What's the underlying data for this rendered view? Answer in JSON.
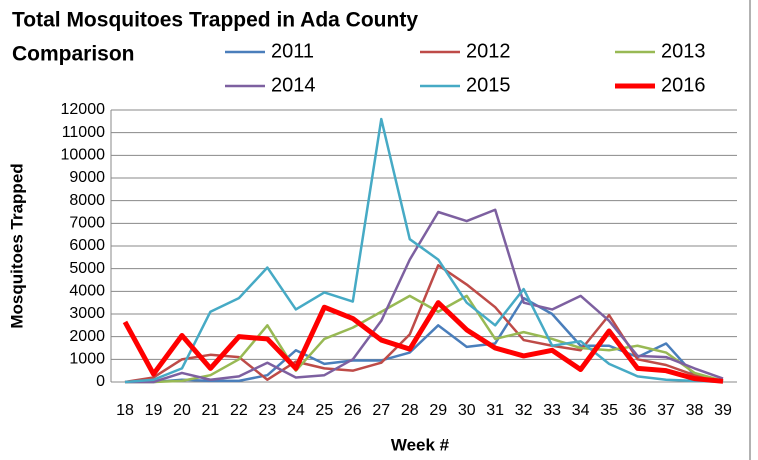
{
  "chart_data": {
    "type": "line",
    "title": [
      "Total Mosquitoes Trapped in Ada County",
      "Comparison"
    ],
    "x_label": "Week #",
    "y_label": "Mosquitoes Trapped",
    "categories": [
      "18",
      "19",
      "20",
      "21",
      "22",
      "23",
      "24",
      "25",
      "26",
      "27",
      "28",
      "29",
      "30",
      "31",
      "32",
      "33",
      "34",
      "35",
      "36",
      "37",
      "38",
      "39"
    ],
    "ylim": [
      0,
      12000
    ],
    "yticks": [
      0,
      1000,
      2000,
      3000,
      4000,
      5000,
      6000,
      7000,
      8000,
      9000,
      10000,
      11000,
      12000
    ],
    "grid": true,
    "series": [
      {
        "name": "2011",
        "color": "#4a7ebb",
        "line_width": 2.5,
        "values": [
          0,
          0,
          100,
          50,
          50,
          300,
          1400,
          800,
          950,
          950,
          1300,
          2500,
          1550,
          1700,
          3700,
          3000,
          1600,
          1600,
          1100,
          1700,
          300,
          50
        ]
      },
      {
        "name": "2012",
        "color": "#be4b48",
        "line_width": 2.5,
        "values": [
          0,
          200,
          1000,
          1200,
          1100,
          100,
          900,
          600,
          500,
          850,
          2100,
          5150,
          4300,
          3300,
          1850,
          1600,
          1400,
          2950,
          1000,
          750,
          300,
          0
        ]
      },
      {
        "name": "2013",
        "color": "#98b954",
        "line_width": 2.5,
        "values": [
          0,
          0,
          50,
          300,
          1000,
          2500,
          500,
          1900,
          2400,
          3100,
          3800,
          3100,
          3800,
          1900,
          2200,
          1900,
          1500,
          1400,
          1600,
          1300,
          400,
          50
        ]
      },
      {
        "name": "2014",
        "color": "#7d60a0",
        "line_width": 2.5,
        "values": [
          0,
          0,
          400,
          100,
          250,
          850,
          200,
          300,
          1000,
          2700,
          5400,
          7500,
          7100,
          7600,
          3500,
          3200,
          3800,
          2700,
          1150,
          1100,
          600,
          150
        ]
      },
      {
        "name": "2015",
        "color": "#46aac5",
        "line_width": 2.5,
        "values": [
          0,
          100,
          600,
          3100,
          3700,
          5050,
          3200,
          3950,
          3550,
          11600,
          6300,
          5400,
          3500,
          2500,
          4100,
          1600,
          1800,
          800,
          250,
          100,
          50,
          0
        ]
      },
      {
        "name": "2016",
        "color": "#ff0000",
        "line_width": 5,
        "values": [
          2650,
          350,
          2050,
          600,
          2000,
          1900,
          600,
          3300,
          2800,
          1850,
          1450,
          3500,
          2300,
          1500,
          1150,
          1400,
          550,
          2250,
          600,
          500,
          150,
          30
        ]
      }
    ]
  }
}
